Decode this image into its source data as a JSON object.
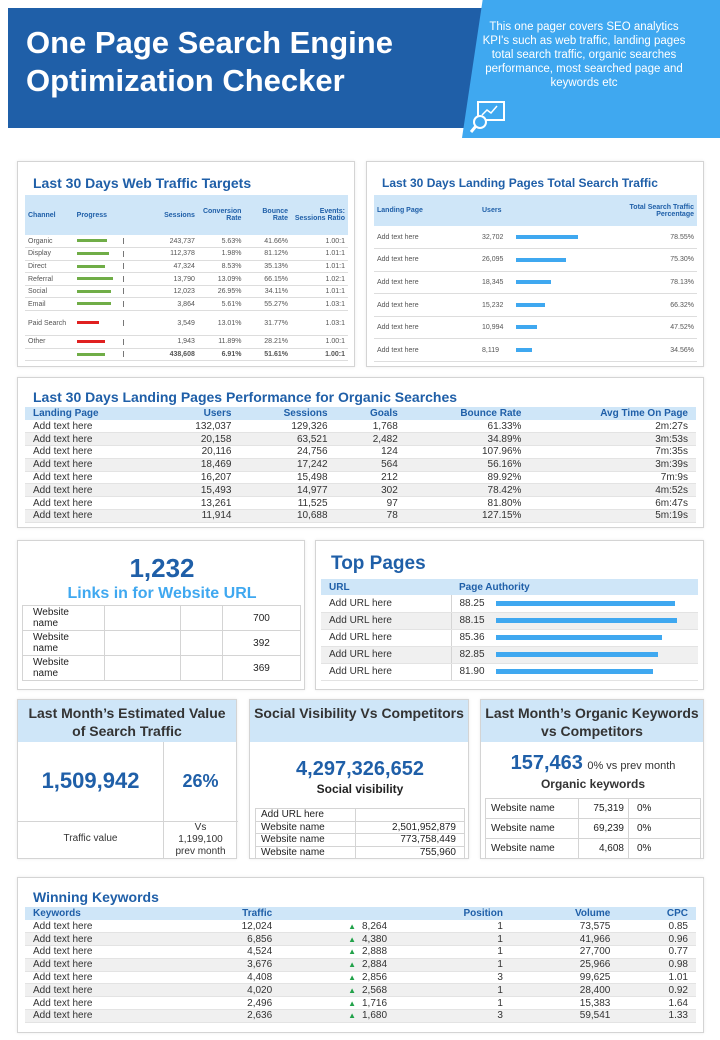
{
  "header": {
    "title": "One Page Search Engine Optimization Checker",
    "description": "This one pager covers SEO analytics KPI's such as web traffic, landing pages total search traffic, organic searches performance, most searched page and keywords etc"
  },
  "web_traffic": {
    "title": "Last 30 Days  Web Traffic Targets",
    "columns": [
      "Channel",
      "Progress",
      "Sessions",
      "Conversion Rate",
      "Bounce Rate",
      "Events: Sessions Ratio"
    ],
    "rows": [
      {
        "channel": "Organic",
        "progress": 0.75,
        "color": "#70ad47",
        "sessions": "243,737",
        "conversion": "5.63%",
        "bounce": "41.66%",
        "ratio": "1.00:1"
      },
      {
        "channel": "Display",
        "progress": 0.8,
        "color": "#70ad47",
        "sessions": "112,378",
        "conversion": "1.98%",
        "bounce": "81.12%",
        "ratio": "1.01:1"
      },
      {
        "channel": "Direct",
        "progress": 0.72,
        "color": "#70ad47",
        "sessions": "47,324",
        "conversion": "8.53%",
        "bounce": "35.13%",
        "ratio": "1.01:1"
      },
      {
        "channel": "Referral",
        "progress": 0.92,
        "color": "#70ad47",
        "sessions": "13,790",
        "conversion": "13.09%",
        "bounce": "66.15%",
        "ratio": "1.02:1"
      },
      {
        "channel": "Social",
        "progress": 0.85,
        "color": "#70ad47",
        "sessions": "12,023",
        "conversion": "26.95%",
        "bounce": "34.11%",
        "ratio": "1.01:1"
      },
      {
        "channel": "Email",
        "progress": 0.85,
        "color": "#70ad47",
        "sessions": "3,864",
        "conversion": "5.61%",
        "bounce": "55.27%",
        "ratio": "1.03:1"
      },
      {
        "channel": "Paid Search",
        "progress": 0.55,
        "color": "#e02020",
        "sessions": "3,549",
        "conversion": "13.01%",
        "bounce": "31.77%",
        "ratio": "1.03:1"
      },
      {
        "channel": "Other",
        "progress": 0.72,
        "color": "#e02020",
        "sessions": "1,943",
        "conversion": "11.89%",
        "bounce": "28.21%",
        "ratio": "1.00:1"
      },
      {
        "channel": "",
        "progress": 0.72,
        "color": "#70ad47",
        "sessions": "438,608",
        "conversion": "6.91%",
        "bounce": "51.61%",
        "ratio": "1.00:1"
      }
    ]
  },
  "landing_traffic": {
    "title": "Last 30 Days  Landing  Pages Total  Search Traffic",
    "columns": [
      "Landing Page",
      "Users",
      "Total Search  Traffic Percentage"
    ],
    "rows": [
      {
        "page": "Add text here",
        "users": "32,702",
        "bar": 1.0,
        "pct": "78.55%"
      },
      {
        "page": "Add text here",
        "users": "26,095",
        "bar": 0.8,
        "pct": "75.30%"
      },
      {
        "page": "Add text here",
        "users": "18,345",
        "bar": 0.56,
        "pct": "78.13%"
      },
      {
        "page": "Add text here",
        "users": "15,232",
        "bar": 0.47,
        "pct": "66.32%"
      },
      {
        "page": "Add text here",
        "users": "10,994",
        "bar": 0.34,
        "pct": "47.52%"
      },
      {
        "page": "Add text here",
        "users": "8,119",
        "bar": 0.25,
        "pct": "34.56%"
      }
    ]
  },
  "organic": {
    "title": "Last 30 Days  Landing Pages Performance for Organic Searches",
    "columns": [
      "Landing Page",
      "Users",
      "Sessions",
      "Goals",
      "Bounce Rate",
      "Avg Time  On Page"
    ],
    "rows": [
      [
        "Add text here",
        "132,037",
        "129,326",
        "1,768",
        "61.33%",
        "2m:27s"
      ],
      [
        "Add text here",
        "20,158",
        "63,521",
        "2,482",
        "34.89%",
        "3m:53s"
      ],
      [
        "Add text here",
        "20,116",
        "24,756",
        "124",
        "107.96%",
        "7m:35s"
      ],
      [
        "Add text here",
        "18,469",
        "17,242",
        "564",
        "56.16%",
        "3m:39s"
      ],
      [
        "Add text here",
        "16,207",
        "15,498",
        "212",
        "89.92%",
        "7m:9s"
      ],
      [
        "Add text here",
        "15,493",
        "14,977",
        "302",
        "78.42%",
        "4m:52s"
      ],
      [
        "Add text here",
        "13,261",
        "11,525",
        "97",
        "81.80%",
        "6m:47s"
      ],
      [
        "Add text here",
        "11,914",
        "10,688",
        "78",
        "127.15%",
        "5m:19s"
      ]
    ]
  },
  "links": {
    "value": "1,232",
    "label": "Links in for Website URL",
    "rows": [
      {
        "name": "Website name",
        "value": "700"
      },
      {
        "name": "Website name",
        "value": "392"
      },
      {
        "name": "Website name",
        "value": "369"
      }
    ]
  },
  "top_pages": {
    "title": "Top Pages",
    "columns": [
      "URL",
      "Page Authority"
    ],
    "rows": [
      {
        "url": "Add URL here",
        "value": "88.25",
        "bar": 0.97
      },
      {
        "url": "Add URL here",
        "value": "88.15",
        "bar": 0.98
      },
      {
        "url": "Add URL here",
        "value": "85.36",
        "bar": 0.9
      },
      {
        "url": "Add URL here",
        "value": "82.85",
        "bar": 0.88
      },
      {
        "url": "Add URL here",
        "value": "81.90",
        "bar": 0.85
      }
    ]
  },
  "traffic_value": {
    "title": "Last Month’s Estimated Value of Search Traffic",
    "value": "1,509,942",
    "pct": "26%",
    "label": "Traffic value",
    "vs_lines": [
      "Vs",
      "1,199,100",
      "prev month"
    ]
  },
  "social": {
    "title": "Social Visibility Vs Competitors",
    "value": "4,297,326,652",
    "label": "Social visibility",
    "rows": [
      {
        "name": "Add URL here",
        "value": ""
      },
      {
        "name": "Website name",
        "value": "2,501,952,879"
      },
      {
        "name": "Website name",
        "value": "773,758,449"
      },
      {
        "name": "Website name",
        "value": "755,960"
      }
    ]
  },
  "keywords_comp": {
    "title": "Last Month’s Organic Keywords vs Competitors",
    "value": "157,463",
    "vs": "0% vs prev month",
    "label": "Organic keywords",
    "rows": [
      {
        "name": "Website name",
        "value": "75,319",
        "pct": "0%"
      },
      {
        "name": "Website name",
        "value": "69,239",
        "pct": "0%"
      },
      {
        "name": "Website name",
        "value": "4,608",
        "pct": "0%"
      }
    ]
  },
  "winning": {
    "title": "Winning Keywords",
    "columns": [
      "Keywords",
      "Traffic",
      "",
      "Position",
      "Volume",
      "CPC"
    ],
    "rows": [
      [
        "Add text here",
        "12,024",
        "8,264",
        "1",
        "73,575",
        "0.85"
      ],
      [
        "Add text here",
        "6,856",
        "4,380",
        "1",
        "41,966",
        "0.96"
      ],
      [
        "Add text here",
        "4,524",
        "2,888",
        "1",
        "27,700",
        "0.77"
      ],
      [
        "Add text here",
        "3,676",
        "2,884",
        "1",
        "25,966",
        "0.98"
      ],
      [
        "Add text here",
        "4,408",
        "2,856",
        "3",
        "99,625",
        "1.01"
      ],
      [
        "Add text here",
        "4,020",
        "2,568",
        "1",
        "28,400",
        "0.92"
      ],
      [
        "Add text here",
        "2,496",
        "1,716",
        "1",
        "15,383",
        "1.64"
      ],
      [
        "Add text here",
        "2,636",
        "1,680",
        "3",
        "59,541",
        "1.33"
      ]
    ],
    "arrow_color": "#22a24a"
  }
}
